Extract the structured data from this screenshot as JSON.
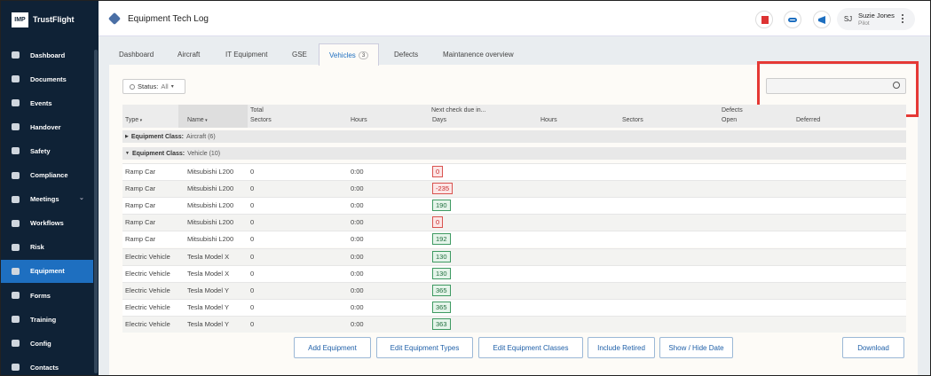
{
  "sidebar": {
    "logo": "IMP",
    "brand": "TrustFlight",
    "nav": [
      {
        "label": "Dashboard"
      },
      {
        "label": "Documents"
      },
      {
        "label": "Events"
      },
      {
        "label": "Handover"
      },
      {
        "label": "Safety"
      },
      {
        "label": "Compliance"
      },
      {
        "label": "Meetings",
        "submenu": true
      },
      {
        "label": "Workflows"
      },
      {
        "label": "Risk"
      },
      {
        "label": "Equipment",
        "active": true
      },
      {
        "label": "Forms"
      },
      {
        "label": "Training"
      },
      {
        "label": "Config"
      },
      {
        "label": "Contacts"
      }
    ]
  },
  "header": {
    "title": "Equipment Tech Log",
    "user": {
      "initials": "SJ",
      "name": "Suzie Jones",
      "role": "Pilot"
    }
  },
  "tabs": [
    {
      "label": "Dashboard"
    },
    {
      "label": "Aircraft"
    },
    {
      "label": "IT Equipment"
    },
    {
      "label": "GSE"
    },
    {
      "label": "Vehicles",
      "count": 3,
      "active": true
    },
    {
      "label": "Defects"
    },
    {
      "label": "Maintanence overview"
    }
  ],
  "filter": {
    "label": "Status:",
    "value": "All"
  },
  "table": {
    "groups": [
      "Total",
      "Next check due in...",
      "Defects"
    ],
    "columns": [
      "Type",
      "Name",
      "Sectors",
      "Hours",
      "Days",
      "Hours",
      "Sectors",
      "Open",
      "Deferred"
    ],
    "classes": [
      {
        "label": "Equipment Class:",
        "name": "Aircraft (6)",
        "expanded": false
      },
      {
        "label": "Equipment Class:",
        "name": "Vehicle (10)",
        "expanded": true
      }
    ],
    "rows": [
      [
        "Ramp Car",
        "Mitsubishi L200",
        0,
        "0:00",
        0
      ],
      [
        "Ramp Car",
        "Mitsubishi L200",
        0,
        "0:00",
        -235
      ],
      [
        "Ramp Car",
        "Mitsubishi L200",
        0,
        "0:00",
        190
      ],
      [
        "Ramp Car",
        "Mitsubishi L200",
        0,
        "0:00",
        0
      ],
      [
        "Ramp Car",
        "Mitsubishi L200",
        0,
        "0:00",
        192
      ],
      [
        "Electric Vehicle",
        "Tesla Model X",
        0,
        "0:00",
        130
      ],
      [
        "Electric Vehicle",
        "Tesla Model X",
        0,
        "0:00",
        130
      ],
      [
        "Electric Vehicle",
        "Tesla Model Y",
        0,
        "0:00",
        365
      ],
      [
        "Electric Vehicle",
        "Tesla Model Y",
        0,
        "0:00",
        365
      ],
      [
        "Electric Vehicle",
        "Tesla Model Y",
        0,
        "0:00",
        363
      ]
    ]
  },
  "buttons": [
    "Add Equipment",
    "Edit Equipment Types",
    "Edit Equipment Classes",
    "Include Retired",
    "Show / Hide Date"
  ],
  "download": "Download"
}
